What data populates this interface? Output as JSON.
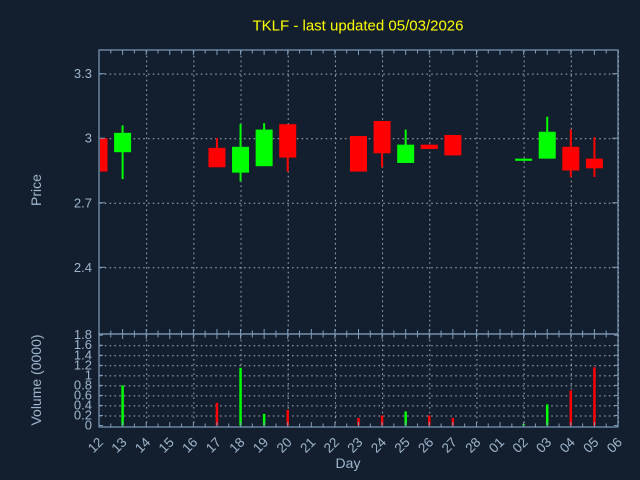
{
  "title": {
    "text": "TKLF - last updated 05/03/2026",
    "color": "#ffff00"
  },
  "colors": {
    "background": "#131f2e",
    "axis": "#7e9cbc",
    "text": "#9fb6ce",
    "grid": "#c3c9cf",
    "up": "#00ff00",
    "down": "#ff0000"
  },
  "chart_data": {
    "type": "candlestick",
    "title": "TKLF - last updated 05/03/2026",
    "xlabel": "Day",
    "legend": "none",
    "grid": "dotted",
    "price_axis": {
      "label": "Price",
      "tick_values": [
        3.3,
        3.0,
        2.7,
        2.4
      ],
      "tick_labels": [
        "3.3",
        "3",
        "2.7",
        "2.4"
      ],
      "range": [
        2.09,
        3.41
      ]
    },
    "volume_axis": {
      "label": "Volume (0000)",
      "tick_values": [
        1.8,
        1.6,
        1.4,
        1.2,
        1.0,
        0.8,
        0.6,
        0.4,
        0.2,
        0
      ],
      "tick_labels": [
        "1.8",
        "1.6",
        "1.4",
        "1.2",
        "1",
        "0.8",
        "0.6",
        "0.4",
        "0.2",
        "0"
      ],
      "gridline_values": [
        1.6,
        1.4,
        1.2,
        1.0,
        0.8,
        0.6,
        0.4,
        0.2
      ],
      "range": [
        0,
        1.8
      ]
    },
    "days": [
      "12",
      "13",
      "14",
      "15",
      "16",
      "17",
      "18",
      "19",
      "20",
      "21",
      "22",
      "23",
      "24",
      "25",
      "26",
      "27",
      "28",
      "01",
      "02",
      "03",
      "04",
      "05",
      "06"
    ],
    "grid_days": [
      "14",
      "16",
      "18",
      "20",
      "22",
      "24",
      "26",
      "28",
      "02",
      "04",
      "06"
    ],
    "candles": [
      {
        "day": "12",
        "open": 3.0,
        "high": 3.0,
        "low": 2.845,
        "close": 2.845,
        "volume": 0
      },
      {
        "day": "13",
        "open": 2.935,
        "high": 3.06,
        "low": 2.81,
        "close": 3.025,
        "volume": 0.8
      },
      {
        "day": "17",
        "open": 2.955,
        "high": 3.0,
        "low": 2.865,
        "close": 2.865,
        "volume": 0.45
      },
      {
        "day": "18",
        "open": 2.84,
        "high": 3.065,
        "low": 2.8,
        "close": 2.96,
        "volume": 1.15
      },
      {
        "day": "19",
        "open": 2.87,
        "high": 3.07,
        "low": 2.87,
        "close": 3.04,
        "volume": 0.23
      },
      {
        "day": "20",
        "open": 3.065,
        "high": 3.065,
        "low": 2.845,
        "close": 2.91,
        "volume": 0.31
      },
      {
        "day": "23",
        "open": 3.01,
        "high": 3.01,
        "low": 2.845,
        "close": 2.845,
        "volume": 0.15
      },
      {
        "day": "24",
        "open": 3.08,
        "high": 3.08,
        "low": 2.865,
        "close": 2.93,
        "volume": 0.2
      },
      {
        "day": "25",
        "open": 2.885,
        "high": 3.04,
        "low": 2.885,
        "close": 2.97,
        "volume": 0.28
      },
      {
        "day": "26",
        "open": 2.97,
        "high": 2.97,
        "low": 2.95,
        "close": 2.95,
        "volume": 0.2
      },
      {
        "day": "27",
        "open": 3.015,
        "high": 3.015,
        "low": 2.92,
        "close": 2.92,
        "volume": 0.15
      },
      {
        "day": "02",
        "open": 2.895,
        "high": 2.905,
        "low": 2.895,
        "close": 2.905,
        "volume": 0.03
      },
      {
        "day": "03",
        "open": 2.905,
        "high": 3.1,
        "low": 2.905,
        "close": 3.03,
        "volume": 0.42
      },
      {
        "day": "04",
        "open": 2.96,
        "high": 3.04,
        "low": 2.82,
        "close": 2.85,
        "volume": 0.7
      },
      {
        "day": "05",
        "open": 2.905,
        "high": 3.005,
        "low": 2.82,
        "close": 2.86,
        "volume": 1.16
      }
    ]
  }
}
